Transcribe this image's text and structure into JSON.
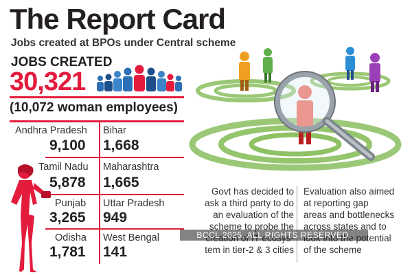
{
  "title": "The Report Card",
  "subtitle": "Jobs created at BPOs under Central scheme",
  "jobs": {
    "label": "JOBS CREATED",
    "value": "30,321",
    "women": "(10,072 woman employees)"
  },
  "states": [
    {
      "name": "Andhra Pradesh",
      "value": "9,100"
    },
    {
      "name": "Bihar",
      "value": "1,668"
    },
    {
      "name": "Tamil Nadu",
      "value": "5,878"
    },
    {
      "name": "Maharashtra",
      "value": "1,665"
    },
    {
      "name": "Punjab",
      "value": "3,265"
    },
    {
      "name": "Uttar Pradesh",
      "value": "949"
    },
    {
      "name": "Odisha",
      "value": "1,781"
    },
    {
      "name": "West Bengal",
      "value": "141"
    }
  ],
  "notes": {
    "left_lines": [
      "Govt has decided to",
      "ask a third party to do",
      "an evaluation of the",
      "scheme to probe the",
      "creation of IT ecosys-",
      "tem in tier-2 & 3 cities"
    ],
    "right_lines": [
      "Evaluation also aimed",
      "at reporting gap",
      "areas and bottlenecks",
      "across states and to",
      "look into the potential",
      "of the scheme"
    ]
  },
  "watermark": "BCCL 2025. ALL RIGHTS RESERVED.",
  "colors": {
    "accent": "#e31c3d",
    "rings": "#7ab648",
    "text": "#231f20"
  }
}
